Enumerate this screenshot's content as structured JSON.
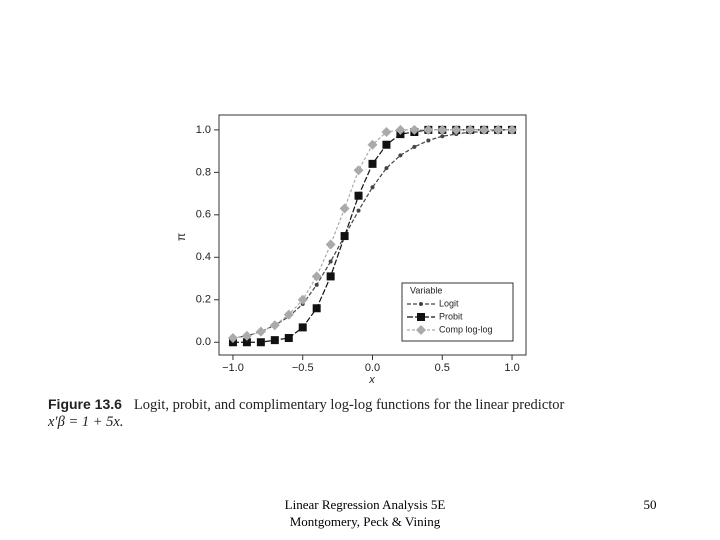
{
  "chart_data": {
    "type": "line",
    "x_label": "x",
    "y_label": "π",
    "x": [
      -1.0,
      -0.9,
      -0.8,
      -0.7,
      -0.6,
      -0.5,
      -0.4,
      -0.3,
      -0.2,
      -0.1,
      0.0,
      0.1,
      0.2,
      0.3,
      0.4,
      0.5,
      0.6,
      0.7,
      0.8,
      0.9,
      1.0
    ],
    "series": [
      {
        "name": "Logit",
        "color": "#444444",
        "marker": "dot",
        "values": [
          0.02,
          0.03,
          0.05,
          0.08,
          0.12,
          0.18,
          0.27,
          0.38,
          0.5,
          0.62,
          0.73,
          0.82,
          0.88,
          0.92,
          0.95,
          0.97,
          0.98,
          0.99,
          0.99,
          1.0,
          1.0
        ]
      },
      {
        "name": "Probit",
        "color": "#111111",
        "marker": "square",
        "values": [
          0.0,
          0.0,
          0.0,
          0.01,
          0.02,
          0.07,
          0.16,
          0.31,
          0.5,
          0.69,
          0.84,
          0.93,
          0.98,
          0.99,
          1.0,
          1.0,
          1.0,
          1.0,
          1.0,
          1.0,
          1.0
        ]
      },
      {
        "name": "Comp log-log",
        "color": "#aaaaaa",
        "marker": "diamond",
        "values": [
          0.02,
          0.03,
          0.05,
          0.08,
          0.13,
          0.2,
          0.31,
          0.46,
          0.63,
          0.81,
          0.93,
          0.99,
          1.0,
          1.0,
          1.0,
          1.0,
          1.0,
          1.0,
          1.0,
          1.0,
          1.0
        ]
      }
    ],
    "legend_title": "Variable",
    "legend": "lower right",
    "xlim": [
      -1.1,
      1.1
    ],
    "xticks": [
      {
        "value": -1.0,
        "label": "−1.0"
      },
      {
        "value": -0.5,
        "label": "−0.5"
      },
      {
        "value": 0.0,
        "label": "0.0"
      },
      {
        "value": 0.5,
        "label": "0.5"
      },
      {
        "value": 1.0,
        "label": "1.0"
      }
    ],
    "ylim": [
      -0.06,
      1.07
    ],
    "yticks": [
      {
        "value": 0.0,
        "label": "0.0"
      },
      {
        "value": 0.2,
        "label": "0.2"
      },
      {
        "value": 0.4,
        "label": "0.4"
      },
      {
        "value": 0.6,
        "label": "0.6"
      },
      {
        "value": 0.8,
        "label": "0.8"
      },
      {
        "value": 1.0,
        "label": "1.0"
      }
    ],
    "grid": false
  },
  "caption": {
    "label": "Figure 13.6",
    "text": "Logit, probit, and complimentary log-log functions for the linear predictor",
    "formula": "x′β = 1 + 5x."
  },
  "footer": {
    "line1": "Linear Regression Analysis 5E",
    "line2": "Montgomery, Peck & Vining",
    "page": "50"
  }
}
